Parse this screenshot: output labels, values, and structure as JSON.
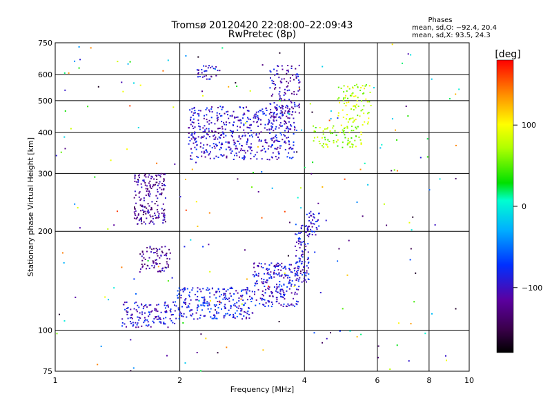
{
  "chart_data": {
    "type": "scatter",
    "title": "Tromsø 20120420 22:08:00–22:09:43",
    "subtitle": "RwPretec (8p)",
    "xlabel": "Frequency [MHz]",
    "ylabel": "Stationary phase Virtual Height [km]",
    "x_scale": "log",
    "y_scale": "log",
    "xlim": [
      1,
      10
    ],
    "ylim": [
      75,
      750
    ],
    "x_ticks": [
      1,
      2,
      4,
      6,
      8,
      10
    ],
    "y_ticks": [
      75,
      100,
      200,
      300,
      400,
      500,
      600,
      750
    ],
    "grid": true,
    "legend_title": "Phases",
    "legend_lines": [
      "mean, sd,O: −92.4, 20.4",
      "mean, sd,X:  93.5, 24.3"
    ],
    "legend_position": "top-right",
    "colorbar": {
      "label": "[deg]",
      "range": [
        -180,
        180
      ],
      "ticks": [
        100,
        0,
        -100
      ],
      "tick_labels": [
        "100",
        "0",
        "−100"
      ]
    },
    "clusters": [
      {
        "x": [
          1.45,
          1.95
        ],
        "y": [
          102,
          122
        ],
        "phase": -95,
        "density": 0.7
      },
      {
        "x": [
          1.95,
          3.0
        ],
        "y": [
          108,
          135
        ],
        "phase": -85,
        "density": 0.8
      },
      {
        "x": [
          3.0,
          3.9
        ],
        "y": [
          118,
          160
        ],
        "phase": -92,
        "density": 0.85
      },
      {
        "x": [
          3.8,
          4.1
        ],
        "y": [
          140,
          210
        ],
        "phase": -88,
        "density": 0.8
      },
      {
        "x": [
          4.05,
          4.35
        ],
        "y": [
          195,
          230
        ],
        "phase": -95,
        "density": 0.5
      },
      {
        "x": [
          1.55,
          1.85
        ],
        "y": [
          210,
          300
        ],
        "phase": -118,
        "density": 0.9
      },
      {
        "x": [
          1.6,
          1.9
        ],
        "y": [
          150,
          180
        ],
        "phase": -120,
        "density": 0.6
      },
      {
        "x": [
          2.1,
          3.8
        ],
        "y": [
          330,
          480
        ],
        "phase": -95,
        "density": 0.75
      },
      {
        "x": [
          3.3,
          3.9
        ],
        "y": [
          440,
          640
        ],
        "phase": -105,
        "density": 0.55
      },
      {
        "x": [
          4.2,
          5.5
        ],
        "y": [
          360,
          420
        ],
        "phase": 70,
        "density": 0.5
      },
      {
        "x": [
          4.8,
          5.8
        ],
        "y": [
          420,
          560
        ],
        "phase": 80,
        "density": 0.4
      },
      {
        "x": [
          2.2,
          2.5
        ],
        "y": [
          580,
          640
        ],
        "phase": -100,
        "density": 0.3
      }
    ]
  }
}
